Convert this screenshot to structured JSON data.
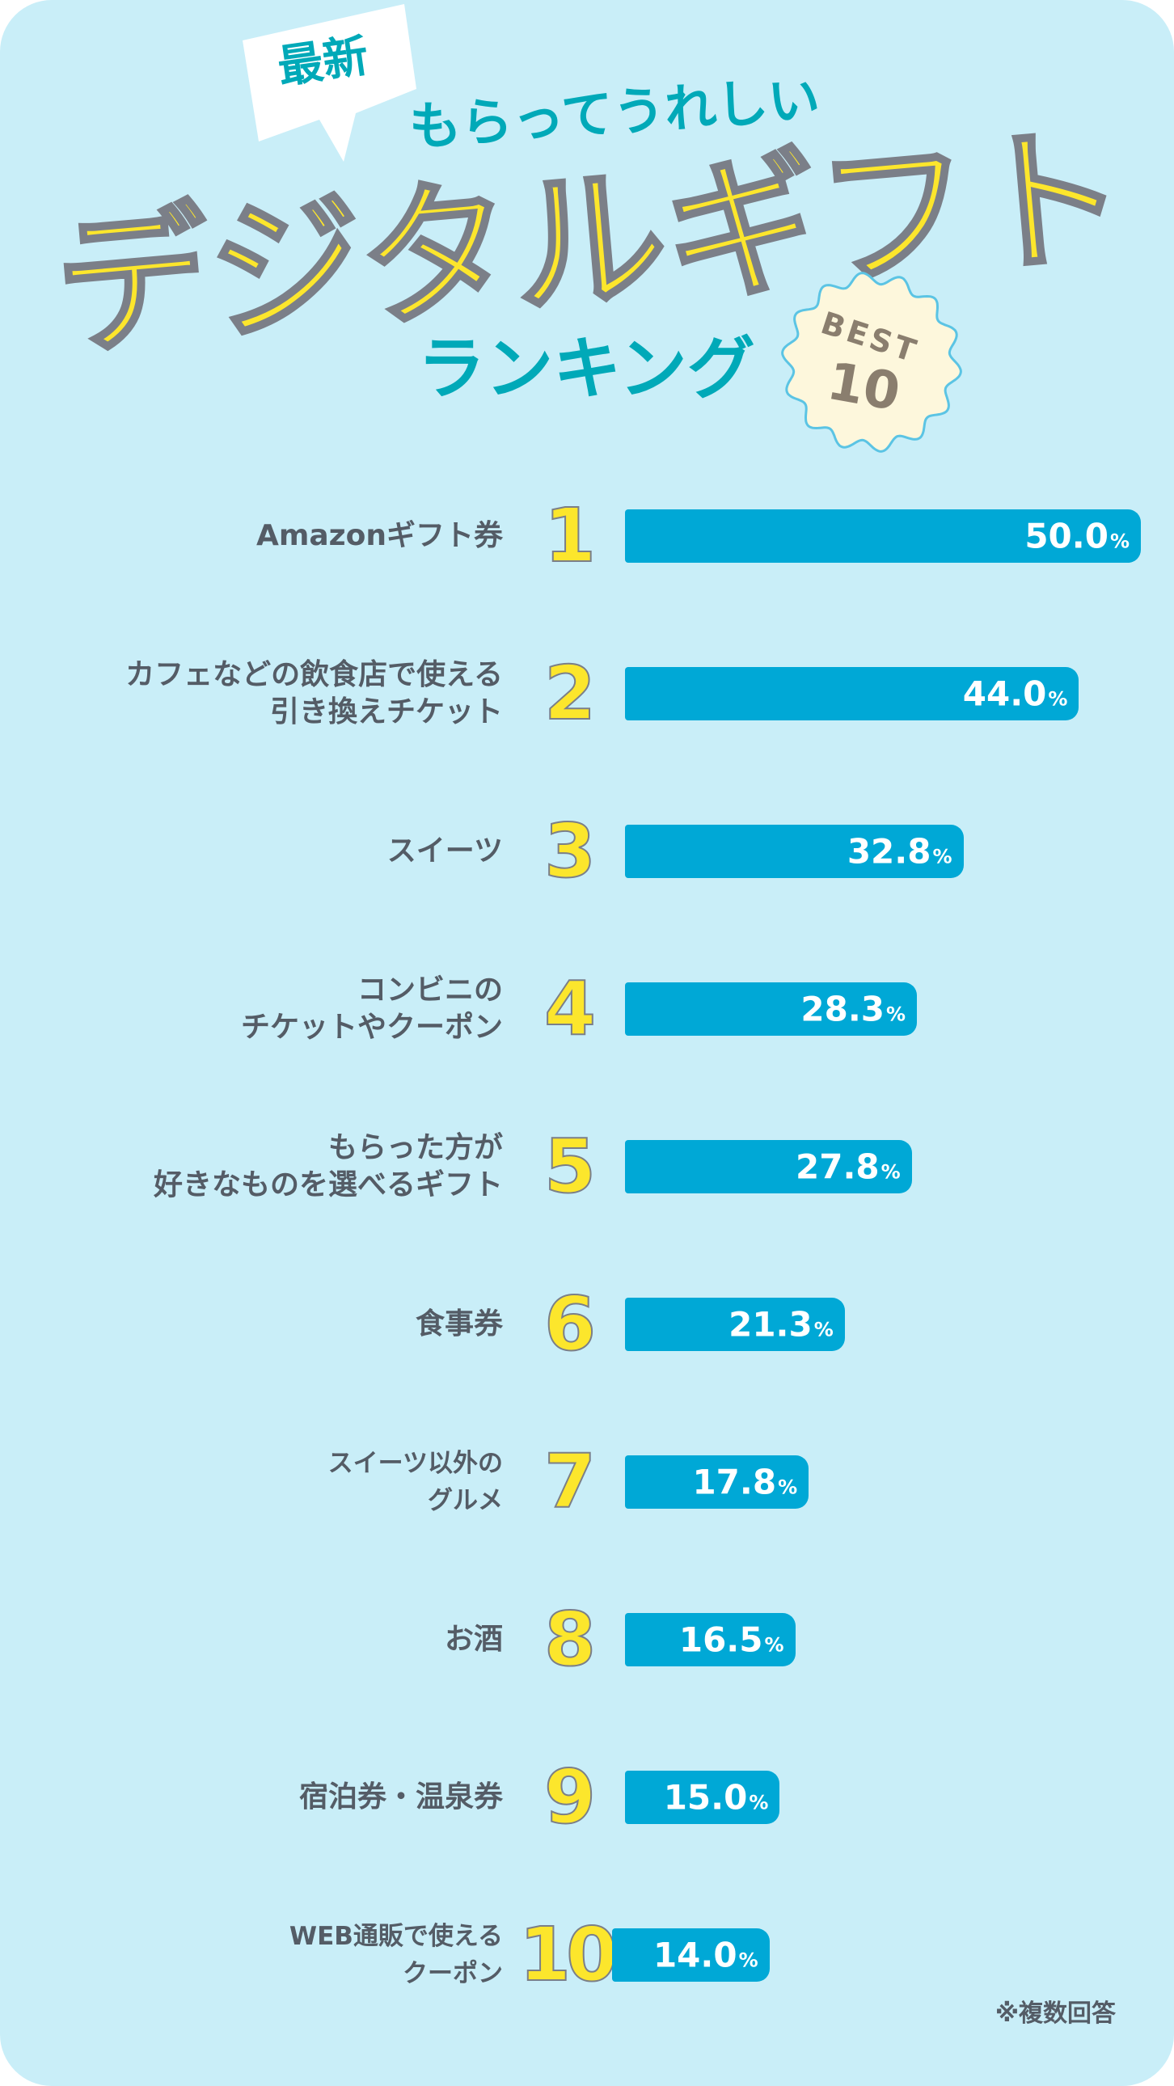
{
  "header": {
    "badge_new": "最新",
    "subtitle": "もらってうれしい",
    "title": "デジタルギフト",
    "ranking": "ランキング",
    "best_label": "BEST",
    "best_number": "10"
  },
  "colors": {
    "background": "#c9eef8",
    "bar": "#00a8d6",
    "title_yellow": "#fce62c",
    "teal": "#00a9b8",
    "label_gray": "#545c66",
    "badge_cream": "#fdf7dc"
  },
  "chart_data": {
    "type": "bar",
    "orientation": "horizontal",
    "categories": [
      "Amazonギフト券",
      "カフェなどの飲食店で使える\n引き換えチケット",
      "スイーツ",
      "コンビニの\nチケットやクーポン",
      "もらった方が\n好きなものを選べるギフト",
      "食事券",
      "スイーツ以外の\nグルメ",
      "お酒",
      "宿泊券・温泉券",
      "WEB通販で使える\nクーポン"
    ],
    "ranks": [
      "1",
      "2",
      "3",
      "4",
      "5",
      "6",
      "7",
      "8",
      "9",
      "10"
    ],
    "values": [
      50.0,
      44.0,
      32.8,
      28.3,
      27.8,
      21.3,
      17.8,
      16.5,
      15.0,
      14.0
    ],
    "value_labels": [
      "50.0",
      "44.0",
      "32.8",
      "28.3",
      "27.8",
      "21.3",
      "17.8",
      "16.5",
      "15.0",
      "14.0"
    ],
    "unit": "%",
    "grid": false
  },
  "footnote": "※複数回答"
}
